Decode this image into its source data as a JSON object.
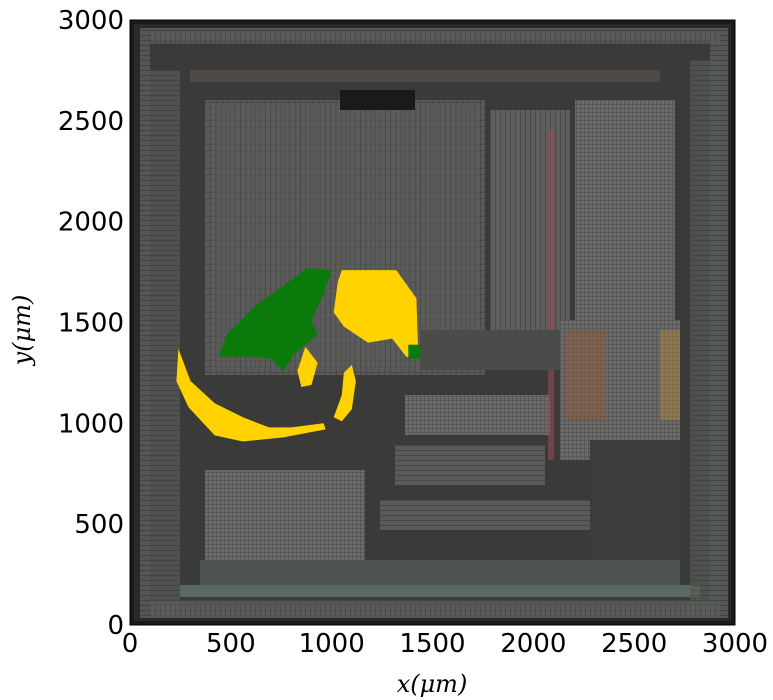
{
  "chart_data": {
    "type": "heatmap",
    "title": "",
    "xlabel": "x(μm)",
    "ylabel": "y(μm)",
    "xlim": [
      0,
      3000
    ],
    "ylim": [
      0,
      3000
    ],
    "xticks": [
      0,
      500,
      1000,
      1500,
      2000,
      2500,
      3000
    ],
    "yticks": [
      0,
      500,
      1000,
      1500,
      2000,
      2500,
      3000
    ],
    "grid": false,
    "legend": "none",
    "background": "chip micrograph image",
    "overlay_colors": {
      "yellow": "#ffd200",
      "green": "#0a7a0a"
    },
    "regions": [
      {
        "color": "yellow",
        "polygon": [
          [
            1050,
            1760
          ],
          [
            1320,
            1760
          ],
          [
            1420,
            1620
          ],
          [
            1430,
            1320
          ],
          [
            1370,
            1330
          ],
          [
            1300,
            1420
          ],
          [
            1180,
            1400
          ],
          [
            1060,
            1480
          ],
          [
            1010,
            1550
          ],
          [
            1030,
            1700
          ]
        ]
      },
      {
        "color": "green",
        "polygon": [
          [
            880,
            1770
          ],
          [
            1000,
            1760
          ],
          [
            960,
            1640
          ],
          [
            900,
            1510
          ],
          [
            930,
            1440
          ],
          [
            820,
            1350
          ],
          [
            760,
            1260
          ],
          [
            700,
            1320
          ],
          [
            610,
            1330
          ],
          [
            440,
            1330
          ],
          [
            480,
            1440
          ],
          [
            620,
            1580
          ]
        ]
      },
      {
        "color": "yellow",
        "polygon": [
          [
            240,
            1370
          ],
          [
            300,
            1210
          ],
          [
            420,
            1100
          ],
          [
            560,
            1030
          ],
          [
            690,
            980
          ],
          [
            800,
            980
          ],
          [
            960,
            1000
          ],
          [
            970,
            970
          ],
          [
            760,
            930
          ],
          [
            560,
            910
          ],
          [
            420,
            940
          ],
          [
            290,
            1080
          ],
          [
            230,
            1210
          ]
        ]
      },
      {
        "color": "yellow",
        "polygon": [
          [
            1100,
            1290
          ],
          [
            1120,
            1210
          ],
          [
            1100,
            1070
          ],
          [
            1050,
            1010
          ],
          [
            1010,
            1030
          ],
          [
            1050,
            1140
          ],
          [
            1060,
            1250
          ]
        ]
      },
      {
        "color": "yellow",
        "polygon": [
          [
            870,
            1380
          ],
          [
            930,
            1300
          ],
          [
            900,
            1190
          ],
          [
            850,
            1180
          ],
          [
            830,
            1260
          ]
        ]
      },
      {
        "color": "green",
        "polygon": [
          [
            1380,
            1390
          ],
          [
            1440,
            1390
          ],
          [
            1440,
            1320
          ],
          [
            1380,
            1320
          ]
        ]
      }
    ]
  }
}
